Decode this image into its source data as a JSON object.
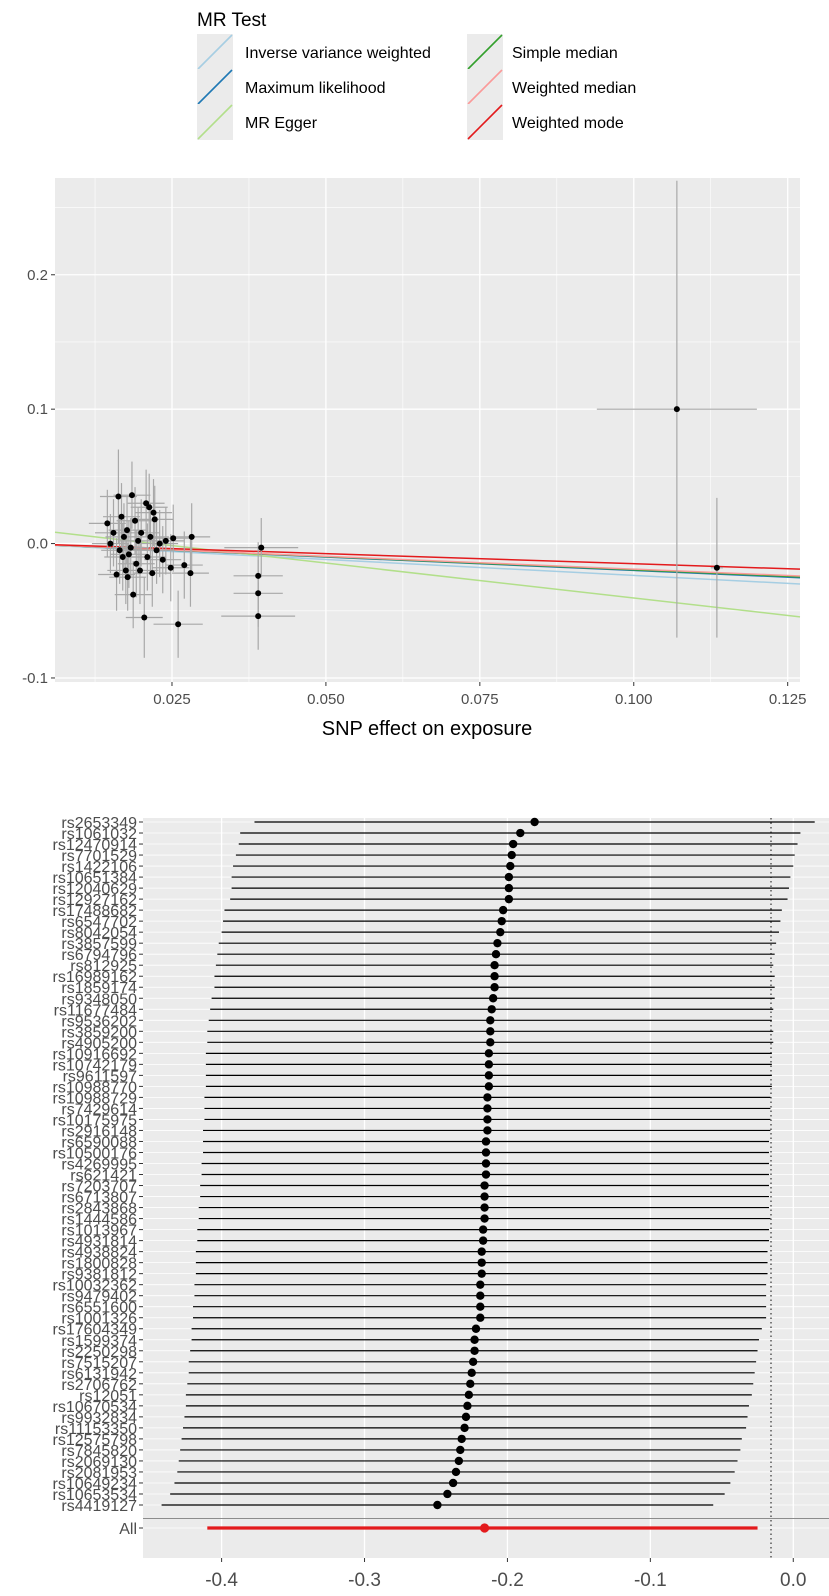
{
  "chart_data": [
    {
      "type": "scatter",
      "title": "",
      "xlabel": "SNP effect on exposure",
      "ylabel": "",
      "xlim": [
        0.006,
        0.127
      ],
      "ylim": [
        -0.103,
        0.272
      ],
      "xticks": [
        0.025,
        0.05,
        0.075,
        0.1,
        0.125
      ],
      "xtick_labels": [
        "0.025",
        "0.050",
        "0.075",
        "0.100",
        "0.125"
      ],
      "yticks": [
        -0.1,
        0.0,
        0.1,
        0.2
      ],
      "ytick_labels": [
        "-0.1",
        "0.0",
        "0.1",
        "0.2"
      ],
      "grid": true,
      "legend": {
        "title": "MR Test",
        "position": "top",
        "items": [
          {
            "name": "Inverse variance weighted",
            "color": "#a6cee3"
          },
          {
            "name": "Maximum likelihood",
            "color": "#1f78b4"
          },
          {
            "name": "MR Egger",
            "color": "#b2df8a"
          },
          {
            "name": "Simple median",
            "color": "#33a02c"
          },
          {
            "name": "Weighted median",
            "color": "#fb9a99"
          },
          {
            "name": "Weighted mode",
            "color": "#e31a1c"
          }
        ]
      },
      "lines": [
        {
          "name": "Inverse variance weighted",
          "slope": -0.237,
          "intercept": 0
        },
        {
          "name": "Maximum likelihood",
          "slope": -0.2,
          "intercept": 0
        },
        {
          "name": "MR Egger",
          "slope": -0.52,
          "intercept": 0.0115
        },
        {
          "name": "Simple median",
          "slope": -0.195,
          "intercept": 0
        },
        {
          "name": "Weighted median",
          "slope": -0.19,
          "intercept": 0
        },
        {
          "name": "Weighted mode",
          "slope": -0.15,
          "intercept": 0
        }
      ],
      "points": [
        {
          "x": 0.0145,
          "y": 0.015,
          "xerr": 0.003,
          "yerr": 0.025
        },
        {
          "x": 0.015,
          "y": 0.0,
          "xerr": 0.003,
          "yerr": 0.022
        },
        {
          "x": 0.0155,
          "y": 0.008,
          "xerr": 0.003,
          "yerr": 0.025
        },
        {
          "x": 0.016,
          "y": -0.023,
          "xerr": 0.003,
          "yerr": 0.027
        },
        {
          "x": 0.0163,
          "y": 0.035,
          "xerr": 0.003,
          "yerr": 0.035
        },
        {
          "x": 0.0165,
          "y": -0.005,
          "xerr": 0.003,
          "yerr": 0.025
        },
        {
          "x": 0.0168,
          "y": 0.02,
          "xerr": 0.003,
          "yerr": 0.025
        },
        {
          "x": 0.017,
          "y": -0.01,
          "xerr": 0.003,
          "yerr": 0.025
        },
        {
          "x": 0.0172,
          "y": 0.005,
          "xerr": 0.003,
          "yerr": 0.025
        },
        {
          "x": 0.0175,
          "y": -0.02,
          "xerr": 0.003,
          "yerr": 0.025
        },
        {
          "x": 0.0177,
          "y": 0.01,
          "xerr": 0.003,
          "yerr": 0.025
        },
        {
          "x": 0.0178,
          "y": -0.025,
          "xerr": 0.003,
          "yerr": 0.025
        },
        {
          "x": 0.018,
          "y": -0.008,
          "xerr": 0.003,
          "yerr": 0.025
        },
        {
          "x": 0.0183,
          "y": -0.003,
          "xerr": 0.003,
          "yerr": 0.022
        },
        {
          "x": 0.0185,
          "y": 0.036,
          "xerr": 0.003,
          "yerr": 0.025
        },
        {
          "x": 0.0187,
          "y": -0.038,
          "xerr": 0.003,
          "yerr": 0.025
        },
        {
          "x": 0.019,
          "y": 0.017,
          "xerr": 0.003,
          "yerr": 0.025
        },
        {
          "x": 0.0192,
          "y": -0.015,
          "xerr": 0.003,
          "yerr": 0.025
        },
        {
          "x": 0.0195,
          "y": 0.002,
          "xerr": 0.003,
          "yerr": 0.025
        },
        {
          "x": 0.0198,
          "y": -0.02,
          "xerr": 0.003,
          "yerr": 0.025
        },
        {
          "x": 0.02,
          "y": 0.008,
          "xerr": 0.003,
          "yerr": 0.025
        },
        {
          "x": 0.0205,
          "y": -0.055,
          "xerr": 0.003,
          "yerr": 0.03
        },
        {
          "x": 0.0208,
          "y": 0.03,
          "xerr": 0.003,
          "yerr": 0.025
        },
        {
          "x": 0.021,
          "y": -0.01,
          "xerr": 0.003,
          "yerr": 0.025
        },
        {
          "x": 0.0213,
          "y": 0.027,
          "xerr": 0.003,
          "yerr": 0.025
        },
        {
          "x": 0.0215,
          "y": 0.005,
          "xerr": 0.003,
          "yerr": 0.025
        },
        {
          "x": 0.0218,
          "y": -0.022,
          "xerr": 0.003,
          "yerr": 0.025
        },
        {
          "x": 0.022,
          "y": 0.023,
          "xerr": 0.003,
          "yerr": 0.025
        },
        {
          "x": 0.0222,
          "y": 0.018,
          "xerr": 0.003,
          "yerr": 0.025
        },
        {
          "x": 0.0225,
          "y": -0.005,
          "xerr": 0.003,
          "yerr": 0.025
        },
        {
          "x": 0.023,
          "y": 0.0,
          "xerr": 0.003,
          "yerr": 0.025
        },
        {
          "x": 0.0235,
          "y": -0.012,
          "xerr": 0.003,
          "yerr": 0.025
        },
        {
          "x": 0.024,
          "y": 0.002,
          "xerr": 0.003,
          "yerr": 0.025
        },
        {
          "x": 0.0248,
          "y": -0.018,
          "xerr": 0.003,
          "yerr": 0.025
        },
        {
          "x": 0.0252,
          "y": 0.004,
          "xerr": 0.003,
          "yerr": 0.025
        },
        {
          "x": 0.026,
          "y": -0.06,
          "xerr": 0.004,
          "yerr": 0.025
        },
        {
          "x": 0.027,
          "y": -0.016,
          "xerr": 0.003,
          "yerr": 0.025
        },
        {
          "x": 0.028,
          "y": -0.022,
          "xerr": 0.003,
          "yerr": 0.025
        },
        {
          "x": 0.0282,
          "y": 0.005,
          "xerr": 0.003,
          "yerr": 0.025
        },
        {
          "x": 0.039,
          "y": -0.024,
          "xerr": 0.004,
          "yerr": 0.025
        },
        {
          "x": 0.039,
          "y": -0.037,
          "xerr": 0.004,
          "yerr": 0.025
        },
        {
          "x": 0.039,
          "y": -0.054,
          "xerr": 0.006,
          "yerr": 0.025
        },
        {
          "x": 0.0395,
          "y": -0.003,
          "xerr": 0.006,
          "yerr": 0.022
        },
        {
          "x": 0.107,
          "y": 0.1,
          "xerr": 0.013,
          "yerr": 0.17
        },
        {
          "x": 0.1135,
          "y": -0.018,
          "xerr": 0.001,
          "yerr": 0.052
        }
      ]
    },
    {
      "type": "forest",
      "title": "",
      "xlabel": "",
      "xlim": [
        -0.455,
        0.025
      ],
      "xticks": [
        -0.4,
        -0.3,
        -0.2,
        -0.1,
        0.0
      ],
      "xtick_labels": [
        "-0.4",
        "-0.3",
        "-0.2",
        "-0.1",
        "0.0"
      ],
      "reference_line": 0.0,
      "snps": [
        "rs2653349",
        "rs1061032",
        "rs12470914",
        "rs7701529",
        "rs1422106",
        "rs10651384",
        "rs12040629",
        "rs12927162",
        "rs17488682",
        "rs6547702",
        "rs8042054",
        "rs3857599",
        "rs6794796",
        "rs812925",
        "rs16989162",
        "rs1859174",
        "rs9348050",
        "rs11677484",
        "rs9536202",
        "rs3859200",
        "rs4905200",
        "rs10916692",
        "rs10742179",
        "rs9611597",
        "rs10988770",
        "rs10988729",
        "rs7429614",
        "rs10175975",
        "rs2916148",
        "rs6590088",
        "rs10500176",
        "rs4269995",
        "rs621421",
        "rs7203707",
        "rs6713807",
        "rs2843868",
        "rs1444586",
        "rs1013967",
        "rs4931814",
        "rs4938824",
        "rs1800828",
        "rs9381812",
        "rs10032362",
        "rs9479402",
        "rs6551600",
        "rs1001326",
        "rs17604349",
        "rs1599374",
        "rs2250298",
        "rs7515207",
        "rs6131942",
        "rs2706762",
        "rs12051",
        "rs10670534",
        "rs9932834",
        "rs11153350",
        "rs12575798",
        "rs7845820",
        "rs2069130",
        "rs2081953",
        "rs10649234",
        "rs10653534",
        "rs4419127"
      ],
      "estimates": [
        -0.181,
        -0.191,
        -0.196,
        -0.197,
        -0.198,
        -0.199,
        -0.199,
        -0.199,
        -0.203,
        -0.204,
        -0.205,
        -0.207,
        -0.208,
        -0.209,
        -0.209,
        -0.209,
        -0.21,
        -0.211,
        -0.212,
        -0.212,
        -0.212,
        -0.213,
        -0.213,
        -0.213,
        -0.213,
        -0.214,
        -0.214,
        -0.214,
        -0.214,
        -0.215,
        -0.215,
        -0.215,
        -0.215,
        -0.216,
        -0.216,
        -0.216,
        -0.216,
        -0.217,
        -0.217,
        -0.218,
        -0.218,
        -0.218,
        -0.219,
        -0.219,
        -0.219,
        -0.219,
        -0.222,
        -0.223,
        -0.223,
        -0.224,
        -0.225,
        -0.226,
        -0.227,
        -0.228,
        -0.229,
        -0.23,
        -0.232,
        -0.233,
        -0.234,
        -0.236,
        -0.238,
        -0.242,
        -0.249
      ],
      "lower": [
        -0.377,
        -0.387,
        -0.388,
        -0.39,
        -0.392,
        -0.393,
        -0.393,
        -0.394,
        -0.398,
        -0.399,
        -0.4,
        -0.402,
        -0.403,
        -0.404,
        -0.405,
        -0.405,
        -0.407,
        -0.408,
        -0.409,
        -0.41,
        -0.41,
        -0.411,
        -0.411,
        -0.411,
        -0.411,
        -0.412,
        -0.412,
        -0.412,
        -0.413,
        -0.413,
        -0.413,
        -0.414,
        -0.414,
        -0.415,
        -0.415,
        -0.416,
        -0.416,
        -0.417,
        -0.417,
        -0.418,
        -0.418,
        -0.418,
        -0.419,
        -0.419,
        -0.42,
        -0.42,
        -0.421,
        -0.421,
        -0.422,
        -0.423,
        -0.423,
        -0.424,
        -0.425,
        -0.425,
        -0.426,
        -0.427,
        -0.428,
        -0.429,
        -0.43,
        -0.431,
        -0.433,
        -0.436,
        -0.442
      ],
      "upper": [
        0.015,
        0.005,
        0.003,
        0.001,
        0.0,
        -0.002,
        -0.003,
        -0.004,
        -0.008,
        -0.009,
        -0.01,
        -0.012,
        -0.013,
        -0.014,
        -0.013,
        -0.013,
        -0.013,
        -0.014,
        -0.015,
        -0.014,
        -0.014,
        -0.015,
        -0.015,
        -0.015,
        -0.015,
        -0.016,
        -0.016,
        -0.016,
        -0.016,
        -0.017,
        -0.017,
        -0.017,
        -0.017,
        -0.017,
        -0.017,
        -0.017,
        -0.016,
        -0.017,
        -0.017,
        -0.018,
        -0.018,
        -0.018,
        -0.019,
        -0.019,
        -0.019,
        -0.019,
        -0.022,
        -0.024,
        -0.025,
        -0.026,
        -0.027,
        -0.028,
        -0.029,
        -0.031,
        -0.032,
        -0.033,
        -0.036,
        -0.037,
        -0.039,
        -0.041,
        -0.044,
        -0.048,
        -0.056
      ],
      "overall": {
        "label": "All",
        "estimate": -0.216,
        "lower": -0.41,
        "upper": -0.025
      },
      "colors": {
        "snp": "#000000",
        "overall": "#e31a1c",
        "panel": "#ebebeb",
        "grid": "#ffffff"
      }
    }
  ]
}
